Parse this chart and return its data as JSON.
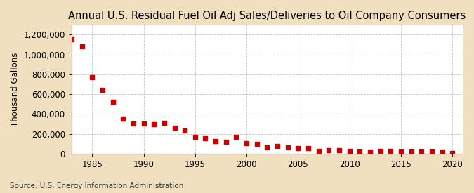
{
  "title": "Annual U.S. Residual Fuel Oil Adj Sales/Deliveries to Oil Company Consumers",
  "ylabel": "Thousand Gallons",
  "source": "Source: U.S. Energy Information Administration",
  "figure_bg": "#f0e0c0",
  "plot_bg": "#ffffff",
  "marker_color": "#cc0000",
  "years": [
    1983,
    1984,
    1985,
    1986,
    1987,
    1988,
    1989,
    1990,
    1991,
    1992,
    1993,
    1994,
    1995,
    1996,
    1997,
    1998,
    1999,
    2000,
    2001,
    2002,
    2003,
    2004,
    2005,
    2006,
    2007,
    2008,
    2009,
    2010,
    2011,
    2012,
    2013,
    2014,
    2015,
    2016,
    2017,
    2018,
    2019,
    2020
  ],
  "values": [
    1150000,
    1080000,
    770000,
    640000,
    520000,
    350000,
    305000,
    300000,
    295000,
    310000,
    260000,
    230000,
    170000,
    155000,
    125000,
    115000,
    165000,
    105000,
    95000,
    60000,
    75000,
    60000,
    55000,
    55000,
    25000,
    30000,
    30000,
    25000,
    18000,
    15000,
    25000,
    25000,
    20000,
    20000,
    20000,
    18000,
    10000,
    5000
  ],
  "xlim": [
    1983.0,
    2021.0
  ],
  "ylim": [
    0,
    1300000
  ],
  "yticks": [
    0,
    200000,
    400000,
    600000,
    800000,
    1000000,
    1200000
  ],
  "xticks": [
    1985,
    1990,
    1995,
    2000,
    2005,
    2010,
    2015,
    2020
  ],
  "grid_color": "#aaaaaa",
  "title_fontsize": 10.5,
  "tick_fontsize": 8.5,
  "ylabel_fontsize": 8.5,
  "source_fontsize": 7.5
}
